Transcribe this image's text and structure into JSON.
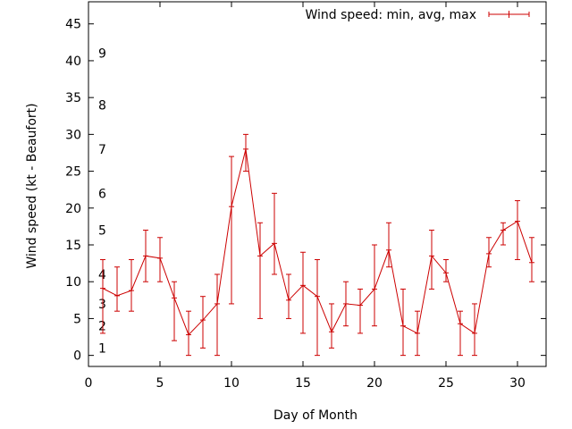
{
  "chart_data": {
    "type": "line",
    "xlabel": "Day of Month",
    "ylabel": "Wind speed (kt - Beaufort)",
    "xlim": [
      0,
      32
    ],
    "ylim": [
      -1.5,
      48
    ],
    "xticks": [
      0,
      5,
      10,
      15,
      20,
      25,
      30
    ],
    "yticks": [
      0,
      5,
      10,
      15,
      20,
      25,
      30,
      35,
      40,
      45
    ],
    "grid": false,
    "legend_position": "top-right",
    "series_color": "#cc0000",
    "series": [
      {
        "name": "Wind speed: min, avg, max",
        "points": [
          {
            "x": 1,
            "y": 9.1,
            "min": 3,
            "max": 13
          },
          {
            "x": 2,
            "y": 8.1,
            "min": 6,
            "max": 12
          },
          {
            "x": 3,
            "y": 8.8,
            "min": 6,
            "max": 13
          },
          {
            "x": 4,
            "y": 13.5,
            "min": 10,
            "max": 17
          },
          {
            "x": 5,
            "y": 13.2,
            "min": 10,
            "max": 16
          },
          {
            "x": 6,
            "y": 7.8,
            "min": 2,
            "max": 10
          },
          {
            "x": 7,
            "y": 2.8,
            "min": 0,
            "max": 6
          },
          {
            "x": 8,
            "y": 4.8,
            "min": 1,
            "max": 8
          },
          {
            "x": 9,
            "y": 7.0,
            "min": 0,
            "max": 11
          },
          {
            "x": 10,
            "y": 20.2,
            "min": 7,
            "max": 27
          },
          {
            "x": 11,
            "y": 28.0,
            "min": 25,
            "max": 30
          },
          {
            "x": 12,
            "y": 13.5,
            "min": 5,
            "max": 18
          },
          {
            "x": 13,
            "y": 15.2,
            "min": 11,
            "max": 22
          },
          {
            "x": 14,
            "y": 7.5,
            "min": 5,
            "max": 11
          },
          {
            "x": 15,
            "y": 9.5,
            "min": 3,
            "max": 14
          },
          {
            "x": 16,
            "y": 8.0,
            "min": 0,
            "max": 13
          },
          {
            "x": 17,
            "y": 3.2,
            "min": 1,
            "max": 7
          },
          {
            "x": 18,
            "y": 7.0,
            "min": 4,
            "max": 10
          },
          {
            "x": 19,
            "y": 6.8,
            "min": 3,
            "max": 9
          },
          {
            "x": 20,
            "y": 9.0,
            "min": 4,
            "max": 15
          },
          {
            "x": 21,
            "y": 14.3,
            "min": 12,
            "max": 18
          },
          {
            "x": 22,
            "y": 4.0,
            "min": 0,
            "max": 9
          },
          {
            "x": 23,
            "y": 3.0,
            "min": 0,
            "max": 6
          },
          {
            "x": 24,
            "y": 13.5,
            "min": 9,
            "max": 17
          },
          {
            "x": 25,
            "y": 11.2,
            "min": 10,
            "max": 13
          },
          {
            "x": 26,
            "y": 4.3,
            "min": 0,
            "max": 6
          },
          {
            "x": 27,
            "y": 3.0,
            "min": 0,
            "max": 7
          },
          {
            "x": 28,
            "y": 13.8,
            "min": 12,
            "max": 16
          },
          {
            "x": 29,
            "y": 17.0,
            "min": 15,
            "max": 18
          },
          {
            "x": 30,
            "y": 18.2,
            "min": 13,
            "max": 21
          },
          {
            "x": 31,
            "y": 12.6,
            "min": 10,
            "max": 16
          }
        ]
      }
    ],
    "annotations": [
      {
        "text": "1",
        "x": 0.5,
        "y": 1
      },
      {
        "text": "2",
        "x": 0.5,
        "y": 4
      },
      {
        "text": "3",
        "x": 0.5,
        "y": 7
      },
      {
        "text": "4",
        "x": 0.5,
        "y": 11
      },
      {
        "text": "5",
        "x": 0.5,
        "y": 17
      },
      {
        "text": "6",
        "x": 0.5,
        "y": 22
      },
      {
        "text": "7",
        "x": 0.5,
        "y": 28
      },
      {
        "text": "8",
        "x": 0.5,
        "y": 34
      },
      {
        "text": "9",
        "x": 0.5,
        "y": 41
      }
    ]
  }
}
